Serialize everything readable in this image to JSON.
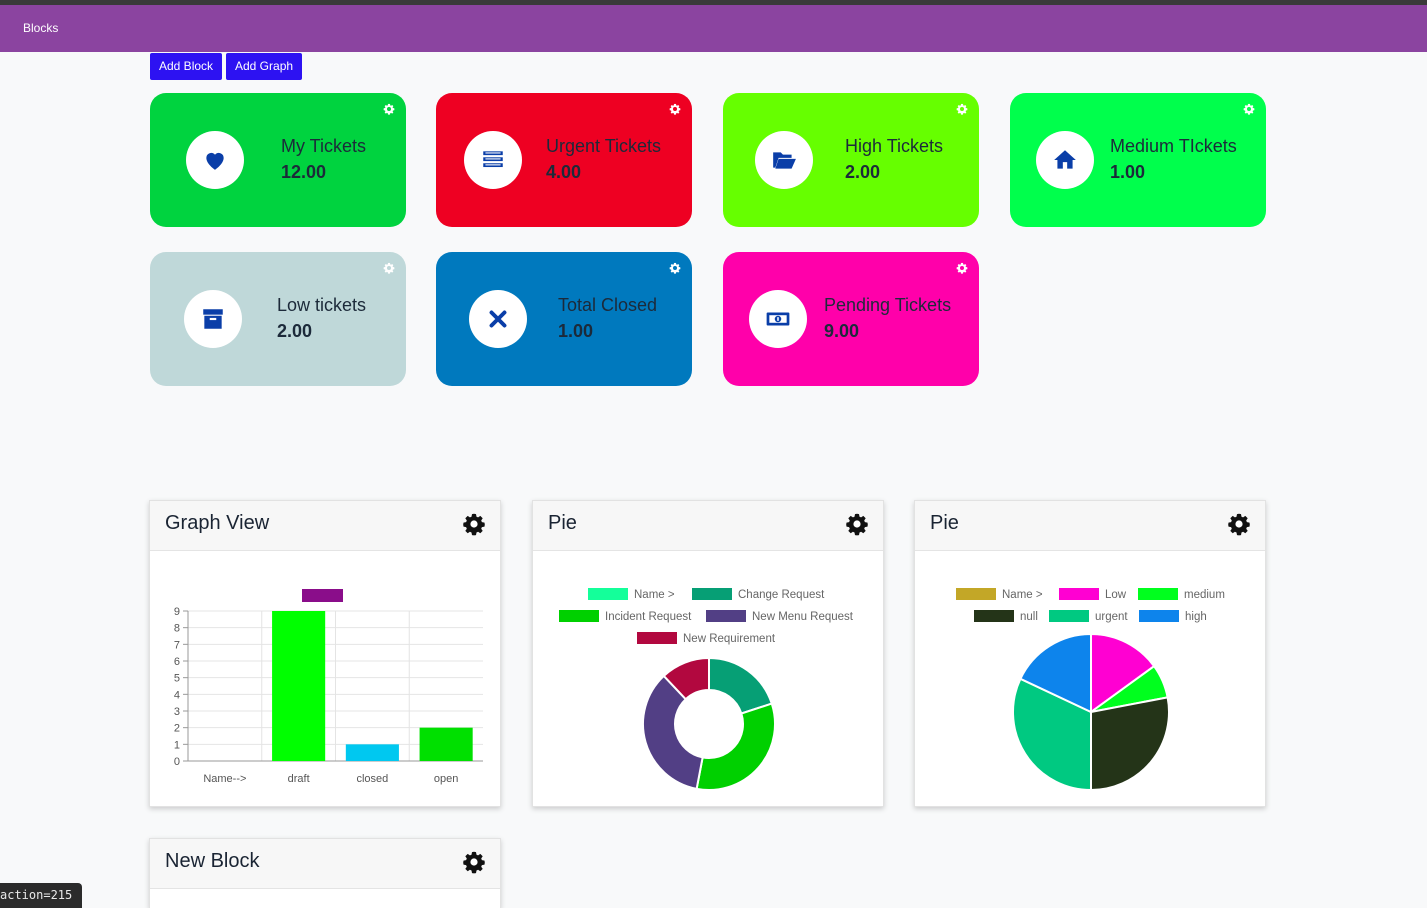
{
  "navbar": {
    "brand": "Blocks"
  },
  "toolbar": {
    "add_block_label": "Add Block",
    "add_graph_label": "Add Graph"
  },
  "colors": {
    "nav": "#8b44a0",
    "button": "#2d12f2",
    "icon_blue": "#0a3ea8"
  },
  "blocks": [
    {
      "label": "My Tickets",
      "value": "12.00",
      "icon": "heart-icon",
      "color": "#00d33f"
    },
    {
      "label": "Urgent Tickets",
      "value": "4.00",
      "icon": "list-icon",
      "color": "#ee0022"
    },
    {
      "label": "High Tickets",
      "value": "2.00",
      "icon": "folder-open-icon",
      "color": "#66ff00"
    },
    {
      "label": "Medium TIckets",
      "value": "1.00",
      "icon": "home-icon",
      "color": "#00ff4c"
    },
    {
      "label": "Low tickets",
      "value": "2.00",
      "icon": "archive-icon",
      "color": "#bfd8d9"
    },
    {
      "label": "Total Closed",
      "value": "1.00",
      "icon": "close-icon",
      "color": "#0079be"
    },
    {
      "label": "Pending Tickets",
      "value": "9.00",
      "icon": "money-icon",
      "color": "#ff00aa"
    }
  ],
  "panels": {
    "graph_view": {
      "title": "Graph View"
    },
    "pie_1": {
      "title": "Pie"
    },
    "pie_2": {
      "title": "Pie"
    },
    "new_block": {
      "title": "New Block"
    }
  },
  "status_bar": {
    "text": "action=215"
  },
  "chart_data": [
    {
      "type": "bar",
      "title": "",
      "categories": [
        "Name-->",
        "draft",
        "closed",
        "open"
      ],
      "values": [
        0,
        9,
        1,
        2
      ],
      "bar_colors": [
        "#00ff00",
        "#00ff00",
        "#00c8f0",
        "#00e000"
      ],
      "legend_swatch_color": "#8a0d8a",
      "ylim": [
        0,
        9
      ],
      "yticks": [
        0,
        1,
        2,
        3,
        4,
        5,
        6,
        7,
        8,
        9
      ],
      "grid": true
    },
    {
      "type": "pie",
      "donut": true,
      "labels": [
        "Name  >",
        "Change Request",
        "Incident Request",
        "New Menu Request",
        "New Requirement"
      ],
      "colors": [
        "#14ff9a",
        "#069f75",
        "#00d000",
        "#523f85",
        "#b2083f"
      ],
      "slices": [
        {
          "label": "Change Request",
          "value": 20,
          "color": "#069f75"
        },
        {
          "label": "Incident Request",
          "value": 33,
          "color": "#00d000"
        },
        {
          "label": "New Menu Request",
          "value": 35,
          "color": "#523f85"
        },
        {
          "label": "New Requirement",
          "value": 12,
          "color": "#b2083f"
        }
      ],
      "legend_position": "top"
    },
    {
      "type": "pie",
      "donut": false,
      "labels": [
        "Name  >",
        "Low",
        "medium",
        "null",
        "urgent",
        "high"
      ],
      "colors": [
        "#c3a727",
        "#ff00d2",
        "#00ff1e",
        "#243418",
        "#00c981",
        "#0d84ec"
      ],
      "slices": [
        {
          "label": "Low",
          "value": 15,
          "color": "#ff00d2"
        },
        {
          "label": "medium",
          "value": 7,
          "color": "#00ff1e"
        },
        {
          "label": "null",
          "value": 28,
          "color": "#243418"
        },
        {
          "label": "urgent",
          "value": 32,
          "color": "#00c981"
        },
        {
          "label": "high",
          "value": 18,
          "color": "#0d84ec"
        }
      ],
      "legend_position": "top"
    }
  ]
}
